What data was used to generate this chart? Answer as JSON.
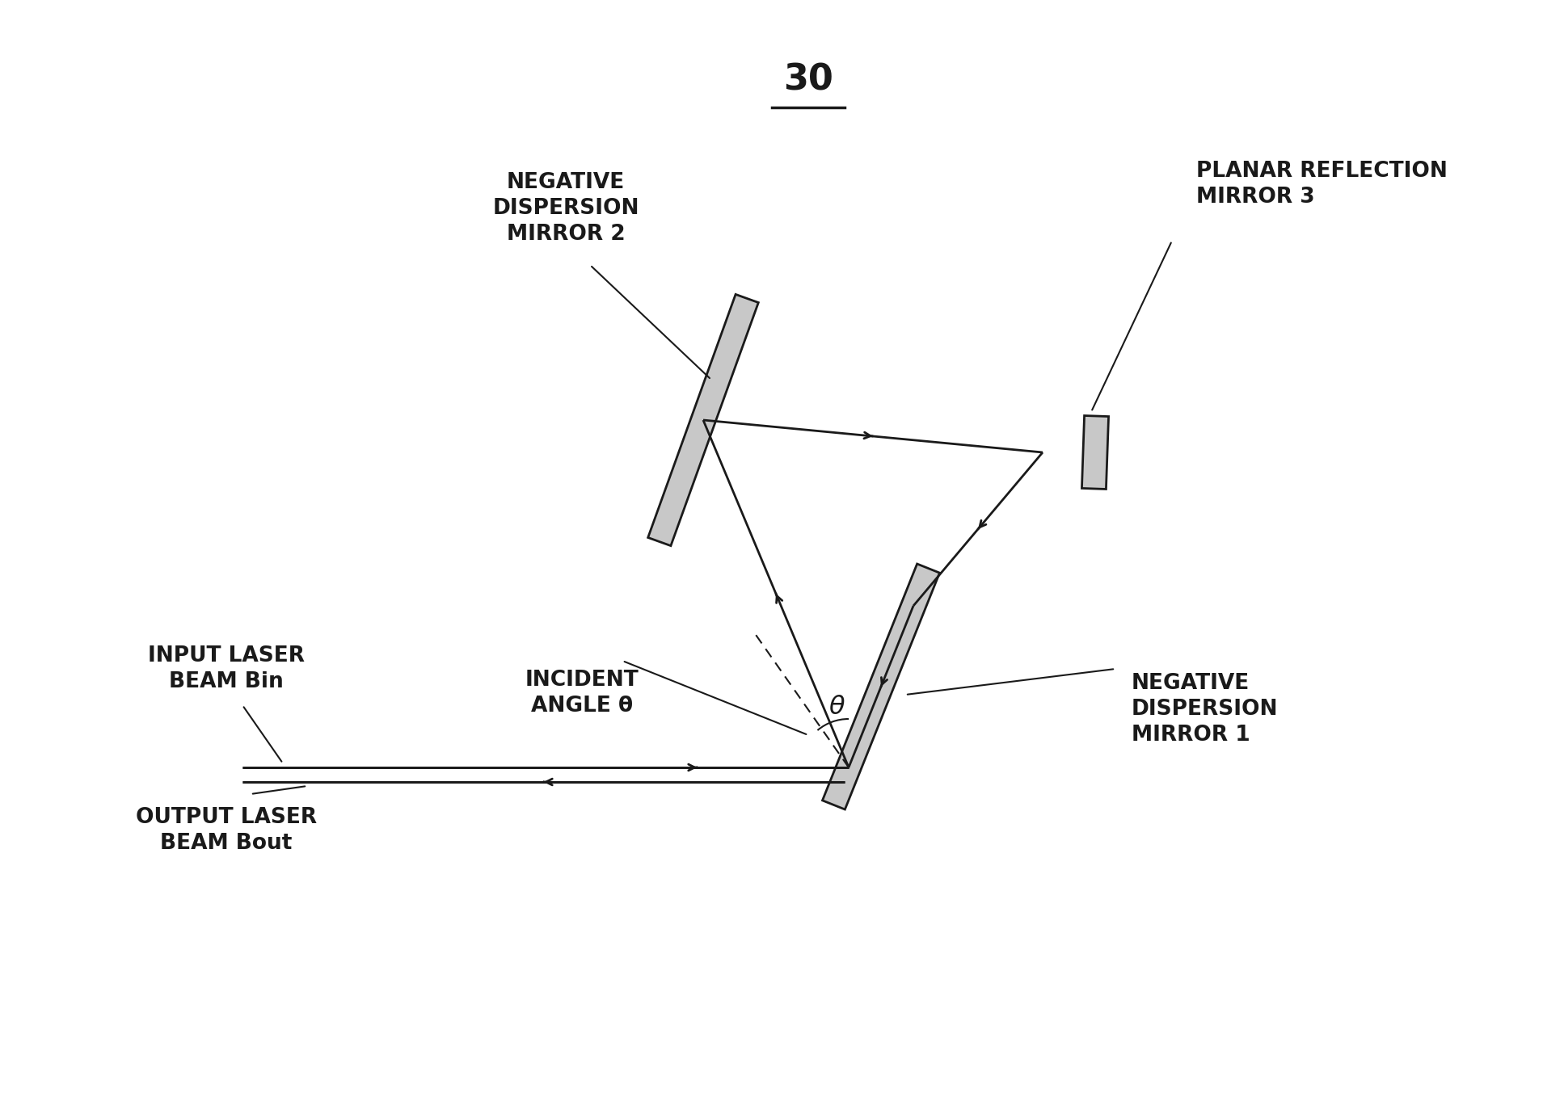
{
  "title": "30",
  "bg_color": "#ffffff",
  "line_color": "#1a1a1a",
  "label_neg_disp_mirror2": "NEGATIVE\nDISPERSION\nMIRROR 2",
  "label_neg_disp_mirror1": "NEGATIVE\nDISPERSION\nMIRROR 1",
  "label_planar_mirror3": "PLANAR REFLECTION\nMIRROR 3",
  "label_input_beam": "INPUT LASER\nBEAM Bin",
  "label_output_beam": "OUTPUT LASER\nBEAM Bout",
  "label_incident_angle": "INCIDENT\nANGLE θ",
  "label_theta": "θ",
  "font_size_title": 32,
  "font_size_labels": 19
}
